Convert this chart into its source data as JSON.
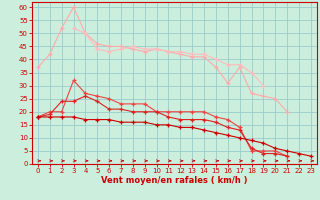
{
  "x": [
    0,
    1,
    2,
    3,
    4,
    5,
    6,
    7,
    8,
    9,
    10,
    11,
    12,
    13,
    14,
    15,
    16,
    17,
    18,
    19,
    20,
    21,
    22,
    23
  ],
  "series": [
    {
      "color": "#ffaaaa",
      "values": [
        37,
        42,
        52,
        60,
        50,
        46,
        45,
        45,
        44,
        43,
        44,
        43,
        42,
        41,
        41,
        37,
        31,
        37,
        27,
        26,
        25,
        20,
        null,
        null
      ]
    },
    {
      "color": "#ffbbbb",
      "values": [
        null,
        null,
        null,
        52,
        50,
        44,
        43,
        44,
        45,
        44,
        44,
        43,
        43,
        42,
        42,
        40,
        38,
        38,
        35,
        30,
        null,
        null,
        null,
        null
      ]
    },
    {
      "color": "#ee4444",
      "values": [
        18,
        20,
        20,
        32,
        27,
        26,
        25,
        23,
        23,
        23,
        20,
        20,
        20,
        20,
        20,
        18,
        17,
        14,
        5,
        5,
        5,
        3,
        null,
        null
      ]
    },
    {
      "color": "#dd2222",
      "values": [
        18,
        19,
        24,
        24,
        26,
        24,
        21,
        21,
        20,
        20,
        20,
        18,
        17,
        17,
        17,
        16,
        14,
        13,
        6,
        4,
        4,
        3,
        null,
        null
      ]
    },
    {
      "color": "#cc0000",
      "values": [
        18,
        18,
        18,
        18,
        17,
        17,
        17,
        16,
        16,
        16,
        15,
        15,
        14,
        14,
        13,
        12,
        11,
        10,
        9,
        8,
        6,
        5,
        4,
        3
      ]
    }
  ],
  "ylim": [
    0,
    62
  ],
  "xlim": [
    -0.5,
    23.5
  ],
  "yticks": [
    0,
    5,
    10,
    15,
    20,
    25,
    30,
    35,
    40,
    45,
    50,
    55,
    60
  ],
  "xticks": [
    0,
    1,
    2,
    3,
    4,
    5,
    6,
    7,
    8,
    9,
    10,
    11,
    12,
    13,
    14,
    15,
    16,
    17,
    18,
    19,
    20,
    21,
    22,
    23
  ],
  "xlabel": "Vent moyen/en rafales ( km/h )",
  "xlabel_color": "#cc0000",
  "background_color": "#cceedd",
  "grid_color": "#99cccc",
  "axis_color": "#cc0000",
  "arrow_color": "#cc0000",
  "tick_fontsize": 5,
  "xlabel_fontsize": 6
}
